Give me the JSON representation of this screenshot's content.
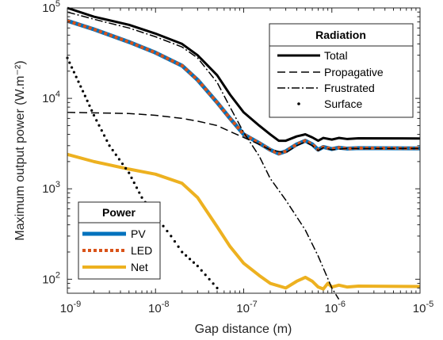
{
  "chart_data": {
    "type": "line",
    "xlabel": "Gap distance (m)",
    "ylabel": "Maximum output power (W.m⁻²)",
    "x_scale": "log",
    "y_scale": "log",
    "xlim": [
      1e-09,
      1e-05
    ],
    "ylim": [
      70,
      100000
    ],
    "x_ticks": [
      {
        "value": 1e-09,
        "base": "10",
        "exp": "-9"
      },
      {
        "value": 1e-08,
        "base": "10",
        "exp": "-8"
      },
      {
        "value": 1e-07,
        "base": "10",
        "exp": "-7"
      },
      {
        "value": 1e-06,
        "base": "10",
        "exp": "-6"
      },
      {
        "value": 1e-05,
        "base": "10",
        "exp": "-5"
      }
    ],
    "y_ticks": [
      {
        "value": 100,
        "base": "10",
        "exp": "2"
      },
      {
        "value": 1000,
        "base": "10",
        "exp": "3"
      },
      {
        "value": 10000,
        "base": "10",
        "exp": "4"
      },
      {
        "value": 100000,
        "base": "10",
        "exp": "5"
      }
    ],
    "legends": [
      {
        "title": "Radiation",
        "position": "top-right",
        "entries": [
          {
            "name": "Total",
            "series": "total"
          },
          {
            "name": "Propagative",
            "series": "propagative"
          },
          {
            "name": "Frustrated",
            "series": "frustrated"
          },
          {
            "name": "Surface",
            "series": "surface"
          }
        ]
      },
      {
        "title": "Power",
        "position": "bottom-left",
        "entries": [
          {
            "name": "PV",
            "series": "pv"
          },
          {
            "name": "LED",
            "series": "led"
          },
          {
            "name": "Net",
            "series": "net"
          }
        ]
      }
    ],
    "series": [
      {
        "id": "pv",
        "name": "PV",
        "color": "#0072BD",
        "style": "solid",
        "width": 5,
        "points": [
          [
            1e-09,
            72000
          ],
          [
            2e-09,
            58000
          ],
          [
            5e-09,
            42000
          ],
          [
            1e-08,
            32000
          ],
          [
            2e-08,
            23000
          ],
          [
            3e-08,
            16000
          ],
          [
            5e-08,
            9000
          ],
          [
            7e-08,
            6000
          ],
          [
            1e-07,
            4000
          ],
          [
            1.5e-07,
            3200
          ],
          [
            2e-07,
            2700
          ],
          [
            2.5e-07,
            2450
          ],
          [
            3e-07,
            2600
          ],
          [
            4e-07,
            3100
          ],
          [
            5e-07,
            3400
          ],
          [
            6e-07,
            3100
          ],
          [
            7e-07,
            2700
          ],
          [
            8e-07,
            2900
          ],
          [
            1e-06,
            2750
          ],
          [
            1.2e-06,
            2850
          ],
          [
            1.5e-06,
            2780
          ],
          [
            2e-06,
            2820
          ],
          [
            1e-05,
            2800
          ]
        ]
      },
      {
        "id": "led",
        "name": "LED",
        "color": "#D95319",
        "style": "dotted",
        "width": 4,
        "points": [
          [
            1e-09,
            72000
          ],
          [
            2e-09,
            58000
          ],
          [
            5e-09,
            42000
          ],
          [
            1e-08,
            32000
          ],
          [
            2e-08,
            23000
          ],
          [
            3e-08,
            16000
          ],
          [
            5e-08,
            9000
          ],
          [
            7e-08,
            6000
          ],
          [
            1e-07,
            4000
          ],
          [
            1.5e-07,
            3200
          ],
          [
            2e-07,
            2700
          ],
          [
            2.5e-07,
            2450
          ],
          [
            3e-07,
            2600
          ],
          [
            4e-07,
            3100
          ],
          [
            5e-07,
            3400
          ],
          [
            6e-07,
            3100
          ],
          [
            7e-07,
            2700
          ],
          [
            8e-07,
            2900
          ],
          [
            1e-06,
            2750
          ],
          [
            1.2e-06,
            2850
          ],
          [
            1.5e-06,
            2780
          ],
          [
            2e-06,
            2820
          ],
          [
            1e-05,
            2800
          ]
        ]
      },
      {
        "id": "net",
        "name": "Net",
        "color": "#EDB120",
        "style": "solid",
        "width": 4,
        "points": [
          [
            1e-09,
            2400
          ],
          [
            2e-09,
            2000
          ],
          [
            5e-09,
            1650
          ],
          [
            1e-08,
            1450
          ],
          [
            2e-08,
            1150
          ],
          [
            3e-08,
            800
          ],
          [
            5e-08,
            380
          ],
          [
            7e-08,
            230
          ],
          [
            1e-07,
            150
          ],
          [
            1.5e-07,
            110
          ],
          [
            2e-07,
            90
          ],
          [
            3e-07,
            80
          ],
          [
            4e-07,
            95
          ],
          [
            5e-07,
            105
          ],
          [
            6e-07,
            95
          ],
          [
            7e-07,
            82
          ],
          [
            8e-07,
            78
          ],
          [
            9e-07,
            90
          ],
          [
            1e-06,
            82
          ],
          [
            1.2e-06,
            86
          ],
          [
            1.5e-06,
            82
          ],
          [
            2e-06,
            84
          ],
          [
            1e-05,
            83
          ]
        ]
      },
      {
        "id": "total",
        "name": "Total",
        "color": "#000000",
        "style": "solid",
        "width": 3,
        "points": [
          [
            1e-09,
            100000
          ],
          [
            2e-09,
            80000
          ],
          [
            5e-09,
            65000
          ],
          [
            1e-08,
            52000
          ],
          [
            2e-08,
            40000
          ],
          [
            3e-08,
            30000
          ],
          [
            5e-08,
            18000
          ],
          [
            7e-08,
            11000
          ],
          [
            1e-07,
            7000
          ],
          [
            1.5e-07,
            5000
          ],
          [
            2e-07,
            4000
          ],
          [
            2.5e-07,
            3400
          ],
          [
            3e-07,
            3400
          ],
          [
            4e-07,
            3800
          ],
          [
            5e-07,
            4000
          ],
          [
            6e-07,
            3700
          ],
          [
            7e-07,
            3400
          ],
          [
            8e-07,
            3650
          ],
          [
            1e-06,
            3500
          ],
          [
            1.2e-06,
            3650
          ],
          [
            1.5e-06,
            3550
          ],
          [
            2e-06,
            3620
          ],
          [
            1e-05,
            3600
          ]
        ]
      },
      {
        "id": "propagative",
        "name": "Propagative",
        "color": "#000000",
        "style": "dashed",
        "width": 1.5,
        "points": [
          [
            1e-09,
            7000
          ],
          [
            5e-09,
            6800
          ],
          [
            1e-08,
            6500
          ],
          [
            2e-08,
            6000
          ],
          [
            3e-08,
            5600
          ],
          [
            5e-08,
            5000
          ],
          [
            7e-08,
            4300
          ],
          [
            1e-07,
            3700
          ],
          [
            1.5e-07,
            3100
          ],
          [
            2e-07,
            2700
          ],
          [
            3e-07,
            2500
          ],
          [
            4e-07,
            3000
          ],
          [
            5e-07,
            3300
          ],
          [
            6e-07,
            3000
          ],
          [
            7e-07,
            2650
          ],
          [
            8e-07,
            2850
          ],
          [
            1e-06,
            2700
          ],
          [
            1.5e-06,
            2800
          ],
          [
            2e-06,
            2780
          ],
          [
            1e-05,
            2790
          ]
        ]
      },
      {
        "id": "frustrated",
        "name": "Frustrated",
        "color": "#000000",
        "style": "dashdot",
        "width": 1.5,
        "points": [
          [
            1e-09,
            90000
          ],
          [
            2e-09,
            75000
          ],
          [
            5e-09,
            60000
          ],
          [
            1e-08,
            48000
          ],
          [
            2e-08,
            37000
          ],
          [
            3e-08,
            28000
          ],
          [
            5e-08,
            15000
          ],
          [
            7e-08,
            8000
          ],
          [
            1e-07,
            4200
          ],
          [
            1.5e-07,
            2300
          ],
          [
            2e-07,
            1300
          ],
          [
            3e-07,
            750
          ],
          [
            5e-07,
            350
          ],
          [
            7e-07,
            180
          ],
          [
            1e-06,
            80
          ],
          [
            1.2e-06,
            60
          ]
        ]
      },
      {
        "id": "surface",
        "name": "Surface",
        "color": "#000000",
        "style": "dots",
        "width": 3,
        "points": [
          [
            1e-09,
            28000
          ],
          [
            1.5e-09,
            12000
          ],
          [
            2e-09,
            6500
          ],
          [
            3e-09,
            3000
          ],
          [
            5e-09,
            1500
          ],
          [
            7e-09,
            800
          ],
          [
            1e-08,
            500
          ],
          [
            1.5e-08,
            300
          ],
          [
            2e-08,
            200
          ],
          [
            3e-08,
            140
          ],
          [
            5e-08,
            80
          ]
        ]
      }
    ]
  }
}
